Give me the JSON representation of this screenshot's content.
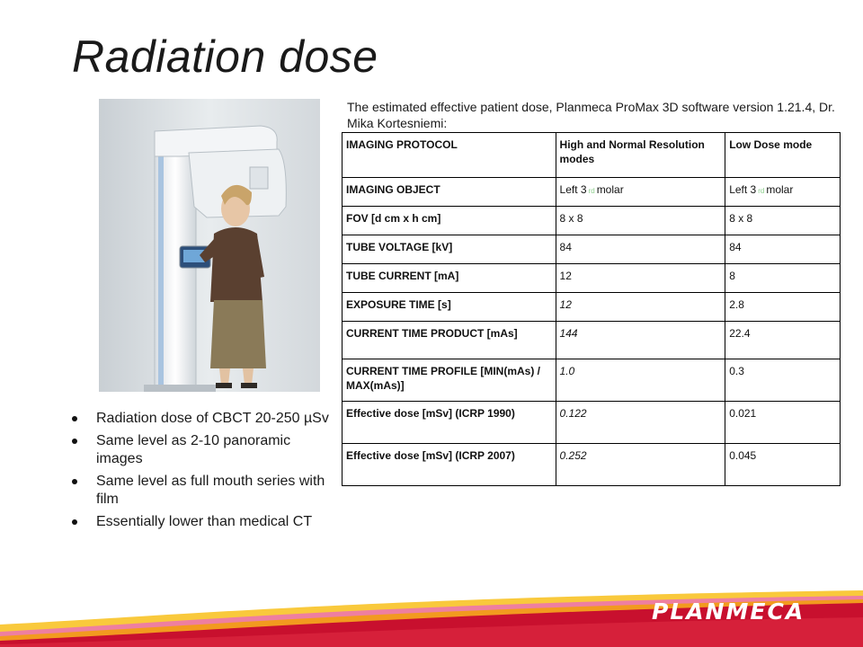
{
  "title": "Radiation dose",
  "caption": "The estimated effective patient dose, Planmeca ProMax 3D software version 1.21.4, Dr. Mika Kortesniemi:",
  "table": {
    "header": [
      "IMAGING PROTOCOL",
      "High and Normal Resolution modes",
      "Low Dose mode"
    ],
    "object_row": {
      "label": "IMAGING OBJECT",
      "col1_a": "Left 3",
      "col1_sub": "rd",
      "col1_b": "molar",
      "col2_a": "Left 3",
      "col2_sub": "rd",
      "col2_b": "molar"
    },
    "rows": [
      {
        "label": "FOV [d cm x h cm]",
        "v1": "8 x 8",
        "v2": "8 x 8"
      },
      {
        "label": "TUBE VOLTAGE [kV]",
        "v1": "84",
        "v2": "84"
      },
      {
        "label": "TUBE CURRENT [mA]",
        "v1": "12",
        "v2": "8"
      },
      {
        "label": "EXPOSURE TIME [s]",
        "v1": "12",
        "v2": "2.8"
      },
      {
        "label": "CURRENT TIME PRODUCT [mAs]",
        "v1": "144",
        "v2": "22.4"
      },
      {
        "label": "CURRENT TIME PROFILE [MIN(mAs) / MAX(mAs)]",
        "v1": "1.0",
        "v2": "0.3"
      },
      {
        "label": "Effective dose [mSv] (ICRP 1990)",
        "v1": "0.122",
        "v2": "0.021"
      },
      {
        "label": "Effective dose [mSv] (ICRP 2007)",
        "v1": "0.252",
        "v2": "0.045"
      }
    ]
  },
  "bullets": [
    "Radiation dose of CBCT 20-250 µSv",
    "Same level as 2-10 panoramic images",
    "Same level as full mouth series with film",
    "Essentially lower than medical CT"
  ],
  "logo": "PLANMECA",
  "colors": {
    "footer_red": "#c8102e",
    "footer_orange": "#f29a1f",
    "footer_yellow": "#f9c93c",
    "footer_pink": "#ee7fa0"
  }
}
